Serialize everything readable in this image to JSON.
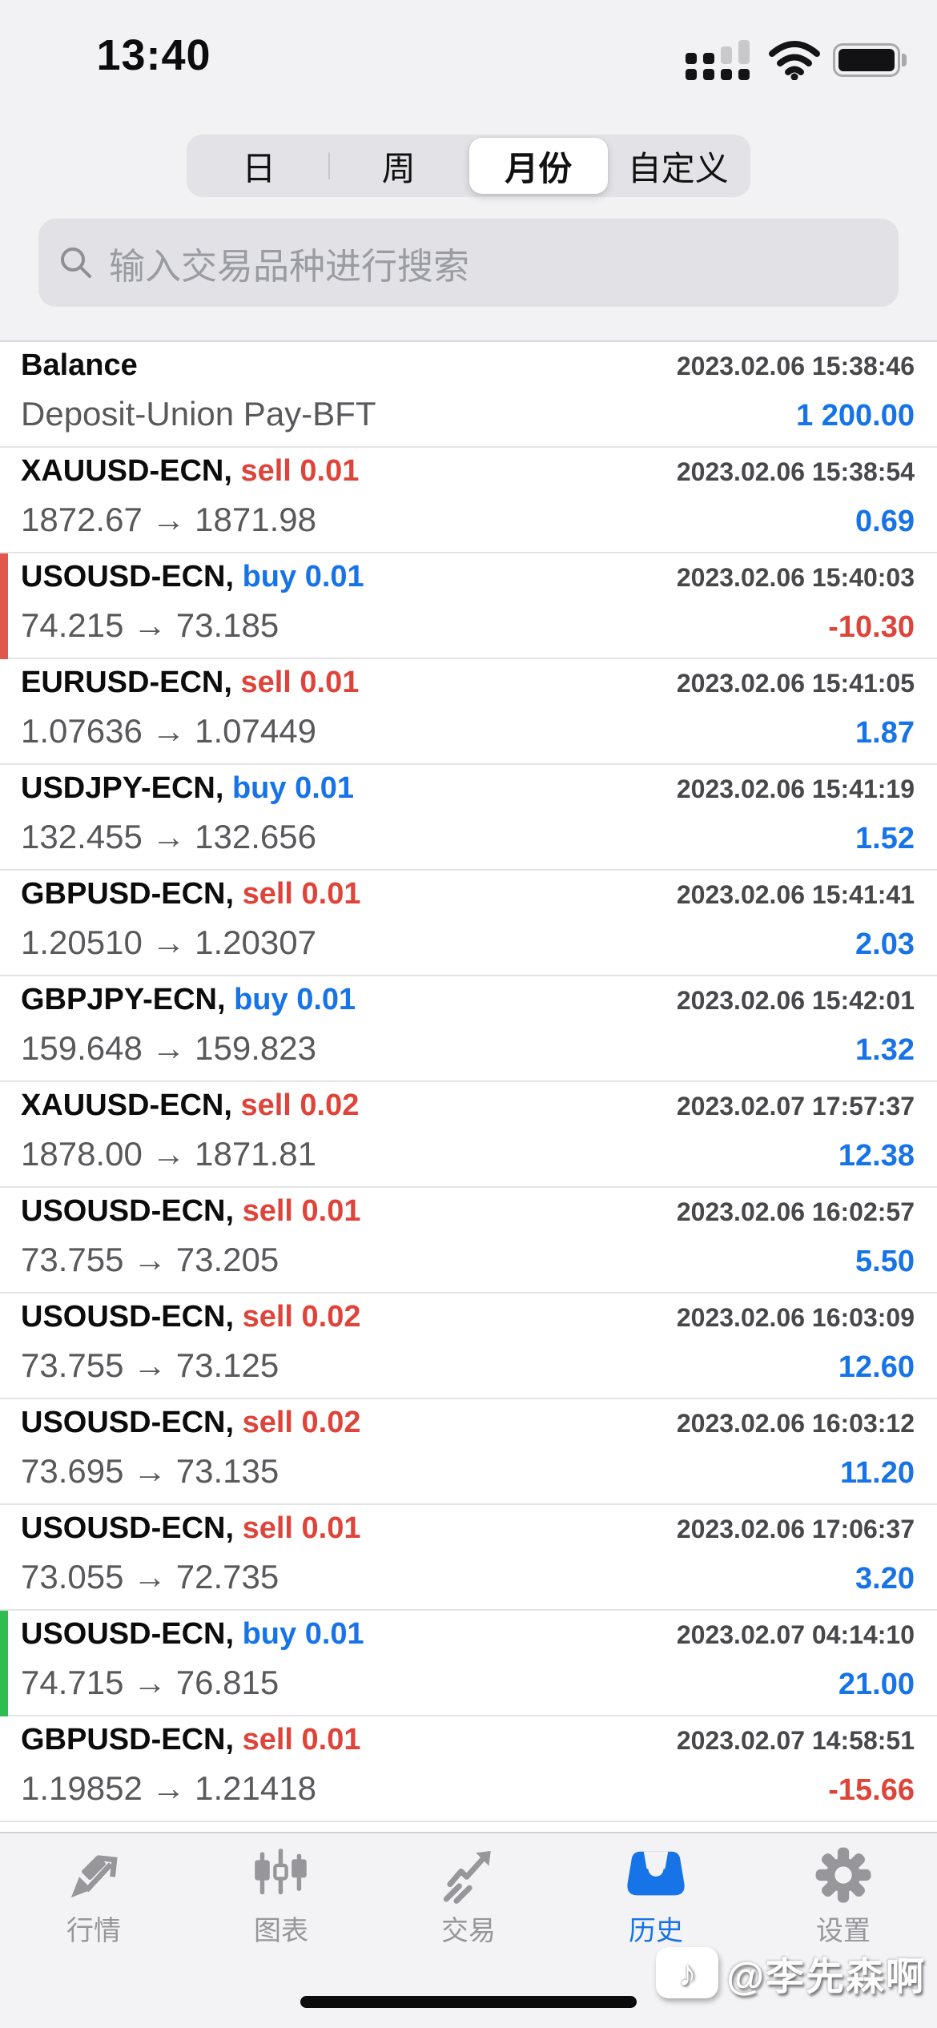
{
  "colors": {
    "buy_blue": "#1673E8",
    "sell_red": "#DF443A",
    "profit_blue": "#1673E8",
    "loss_red": "#DF443A",
    "stripe_red": "#E2574B",
    "stripe_green": "#2EBD4E",
    "tab_active": "#1673E8"
  },
  "status_bar": {
    "time": "13:40",
    "icons": [
      "cellular-signal-icon",
      "wifi-icon",
      "battery-icon"
    ]
  },
  "period_tabs": {
    "options": [
      {
        "key": "day",
        "label": "日",
        "selected": false
      },
      {
        "key": "week",
        "label": "周",
        "selected": false
      },
      {
        "key": "month",
        "label": "月份",
        "selected": true
      },
      {
        "key": "custom",
        "label": "自定义",
        "selected": false
      }
    ]
  },
  "search": {
    "placeholder": "输入交易品种进行搜索",
    "icon": "search-icon"
  },
  "history": {
    "rows": [
      {
        "type": "balance",
        "symbol": "Balance",
        "side": "",
        "side_dir": "",
        "datetime": "2023.02.06 15:38:46",
        "detail": "Deposit-Union Pay-BFT",
        "amount": "1 200.00",
        "amount_sign": "pos",
        "stripe": null
      },
      {
        "type": "trade",
        "symbol": "XAUUSD-ECN,",
        "side": "sell 0.01",
        "side_dir": "sell",
        "datetime": "2023.02.06 15:38:54",
        "detail": "1872.67 → 1871.98",
        "amount": "0.69",
        "amount_sign": "pos",
        "stripe": null
      },
      {
        "type": "trade",
        "symbol": "USOUSD-ECN,",
        "side": "buy 0.01",
        "side_dir": "buy",
        "datetime": "2023.02.06 15:40:03",
        "detail": "74.215 → 73.185",
        "amount": "-10.30",
        "amount_sign": "neg",
        "stripe": "red"
      },
      {
        "type": "trade",
        "symbol": "EURUSD-ECN,",
        "side": "sell 0.01",
        "side_dir": "sell",
        "datetime": "2023.02.06 15:41:05",
        "detail": "1.07636 → 1.07449",
        "amount": "1.87",
        "amount_sign": "pos",
        "stripe": null
      },
      {
        "type": "trade",
        "symbol": "USDJPY-ECN,",
        "side": "buy 0.01",
        "side_dir": "buy",
        "datetime": "2023.02.06 15:41:19",
        "detail": "132.455 → 132.656",
        "amount": "1.52",
        "amount_sign": "pos",
        "stripe": null
      },
      {
        "type": "trade",
        "symbol": "GBPUSD-ECN,",
        "side": "sell 0.01",
        "side_dir": "sell",
        "datetime": "2023.02.06 15:41:41",
        "detail": "1.20510 → 1.20307",
        "amount": "2.03",
        "amount_sign": "pos",
        "stripe": null
      },
      {
        "type": "trade",
        "symbol": "GBPJPY-ECN,",
        "side": "buy 0.01",
        "side_dir": "buy",
        "datetime": "2023.02.06 15:42:01",
        "detail": "159.648 → 159.823",
        "amount": "1.32",
        "amount_sign": "pos",
        "stripe": null
      },
      {
        "type": "trade",
        "symbol": "XAUUSD-ECN,",
        "side": "sell 0.02",
        "side_dir": "sell",
        "datetime": "2023.02.07 17:57:37",
        "detail": "1878.00 → 1871.81",
        "amount": "12.38",
        "amount_sign": "pos",
        "stripe": null
      },
      {
        "type": "trade",
        "symbol": "USOUSD-ECN,",
        "side": "sell 0.01",
        "side_dir": "sell",
        "datetime": "2023.02.06 16:02:57",
        "detail": "73.755 → 73.205",
        "amount": "5.50",
        "amount_sign": "pos",
        "stripe": null
      },
      {
        "type": "trade",
        "symbol": "USOUSD-ECN,",
        "side": "sell 0.02",
        "side_dir": "sell",
        "datetime": "2023.02.06 16:03:09",
        "detail": "73.755 → 73.125",
        "amount": "12.60",
        "amount_sign": "pos",
        "stripe": null
      },
      {
        "type": "trade",
        "symbol": "USOUSD-ECN,",
        "side": "sell 0.02",
        "side_dir": "sell",
        "datetime": "2023.02.06 16:03:12",
        "detail": "73.695 → 73.135",
        "amount": "11.20",
        "amount_sign": "pos",
        "stripe": null
      },
      {
        "type": "trade",
        "symbol": "USOUSD-ECN,",
        "side": "sell 0.01",
        "side_dir": "sell",
        "datetime": "2023.02.06 17:06:37",
        "detail": "73.055 → 72.735",
        "amount": "3.20",
        "amount_sign": "pos",
        "stripe": null
      },
      {
        "type": "trade",
        "symbol": "USOUSD-ECN,",
        "side": "buy 0.01",
        "side_dir": "buy",
        "datetime": "2023.02.07 04:14:10",
        "detail": "74.715 → 76.815",
        "amount": "21.00",
        "amount_sign": "pos",
        "stripe": "green"
      },
      {
        "type": "trade",
        "symbol": "GBPUSD-ECN,",
        "side": "sell 0.01",
        "side_dir": "sell",
        "datetime": "2023.02.07 14:58:51",
        "detail": "1.19852 → 1.21418",
        "amount": "-15.66",
        "amount_sign": "neg",
        "stripe": null
      }
    ]
  },
  "tab_bar": {
    "items": [
      {
        "key": "quotes",
        "label": "行情",
        "icon": "quotes-icon",
        "active": false
      },
      {
        "key": "charts",
        "label": "图表",
        "icon": "charts-icon",
        "active": false
      },
      {
        "key": "trade",
        "label": "交易",
        "icon": "trade-icon",
        "active": false
      },
      {
        "key": "history",
        "label": "历史",
        "icon": "history-icon",
        "active": true
      },
      {
        "key": "settings",
        "label": "设置",
        "icon": "settings-icon",
        "active": false
      }
    ]
  },
  "watermark": {
    "text": "@李先森啊",
    "logo_icon": "music-note-icon",
    "logo_glyph": "♪"
  }
}
